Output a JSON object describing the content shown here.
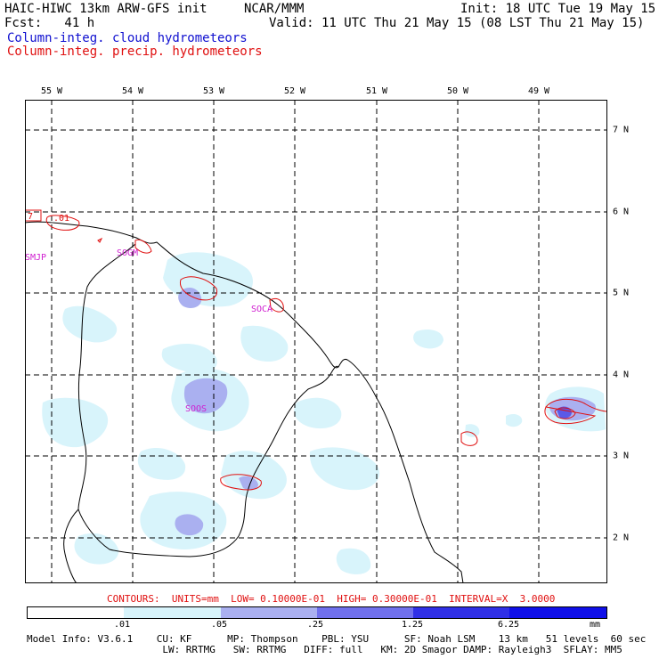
{
  "header": {
    "model": "HAIC-HIWC 13km ARW-GFS init",
    "org": "NCAR/MMM",
    "init": "Init: 18 UTC Tue 19 May 15",
    "fcst": "Fcst:   41 h",
    "valid": "Valid: 11 UTC Thu 21 May 15 (08 LST Thu 21 May 15)",
    "field1": "Column-integ. cloud hydrometeors",
    "field2": "Column-integ. precip. hydrometeors"
  },
  "axes": {
    "lon_labels": [
      "55 W",
      "54 W",
      "53 W",
      "52 W",
      "51 W",
      "50 W",
      "49 W"
    ],
    "lat_labels": [
      "7 N",
      "6 N",
      "5 N",
      "4 N",
      "3 N",
      "2 N"
    ]
  },
  "stations": [
    "SMJP",
    "SOGM",
    "SOCA",
    "SOOS"
  ],
  "contour_labels": [
    "7",
    ".01"
  ],
  "contours_line": "CONTOURS:  UNITS=mm  LOW= 0.10000E-01  HIGH= 0.30000E-01  INTERVAL=X  3.0000",
  "colorbar": {
    "labels": [
      ".01",
      ".05",
      ".25",
      "1.25",
      "6.25"
    ],
    "units": "mm",
    "colors": [
      "#ffffff",
      "#d8f4fb",
      "#aab0f0",
      "#7070ec",
      "#3030e6",
      "#1010e8"
    ]
  },
  "model_info": {
    "line1": "Model Info: V3.6.1    CU: KF      MP: Thompson    PBL: YSU      SF: Noah LSM    13 km   51 levels  60 sec",
    "line2": "                       LW: RRTMG   SW: RRTMG   DIFF: full   KM: 2D Smagor DAMP: Rayleigh3  SFLAY: MM5"
  }
}
